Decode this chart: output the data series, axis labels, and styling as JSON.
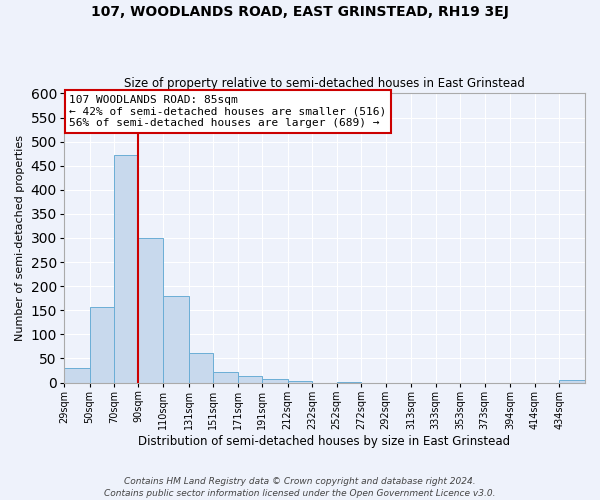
{
  "title": "107, WOODLANDS ROAD, EAST GRINSTEAD, RH19 3EJ",
  "subtitle": "Size of property relative to semi-detached houses in East Grinstead",
  "xlabel": "Distribution of semi-detached houses by size in East Grinstead",
  "ylabel": "Number of semi-detached properties",
  "bar_labels": [
    "29sqm",
    "50sqm",
    "70sqm",
    "90sqm",
    "110sqm",
    "131sqm",
    "151sqm",
    "171sqm",
    "191sqm",
    "212sqm",
    "232sqm",
    "252sqm",
    "272sqm",
    "292sqm",
    "313sqm",
    "333sqm",
    "353sqm",
    "373sqm",
    "394sqm",
    "414sqm",
    "434sqm"
  ],
  "bar_values": [
    30,
    157,
    473,
    300,
    180,
    62,
    22,
    13,
    8,
    4,
    0,
    2,
    0,
    0,
    0,
    0,
    0,
    0,
    0,
    0,
    5
  ],
  "bar_color": "#c8d9ed",
  "bar_edge_color": "#6baed6",
  "background_color": "#eef2fb",
  "grid_color": "#ffffff",
  "red_line_color": "#cc0000",
  "annotation_title": "107 WOODLANDS ROAD: 85sqm",
  "annotation_line1": "← 42% of semi-detached houses are smaller (516)",
  "annotation_line2": "56% of semi-detached houses are larger (689) →",
  "annotation_box_color": "#ffffff",
  "annotation_box_edge": "#cc0000",
  "footer1": "Contains HM Land Registry data © Crown copyright and database right 2024.",
  "footer2": "Contains public sector information licensed under the Open Government Licence v3.0.",
  "ylim": [
    0,
    600
  ],
  "yticks": [
    0,
    50,
    100,
    150,
    200,
    250,
    300,
    350,
    400,
    450,
    500,
    550,
    600
  ],
  "bin_edges": [
    29,
    50,
    70,
    90,
    110,
    131,
    151,
    171,
    191,
    212,
    232,
    252,
    272,
    292,
    313,
    333,
    353,
    373,
    394,
    414,
    434,
    455
  ]
}
